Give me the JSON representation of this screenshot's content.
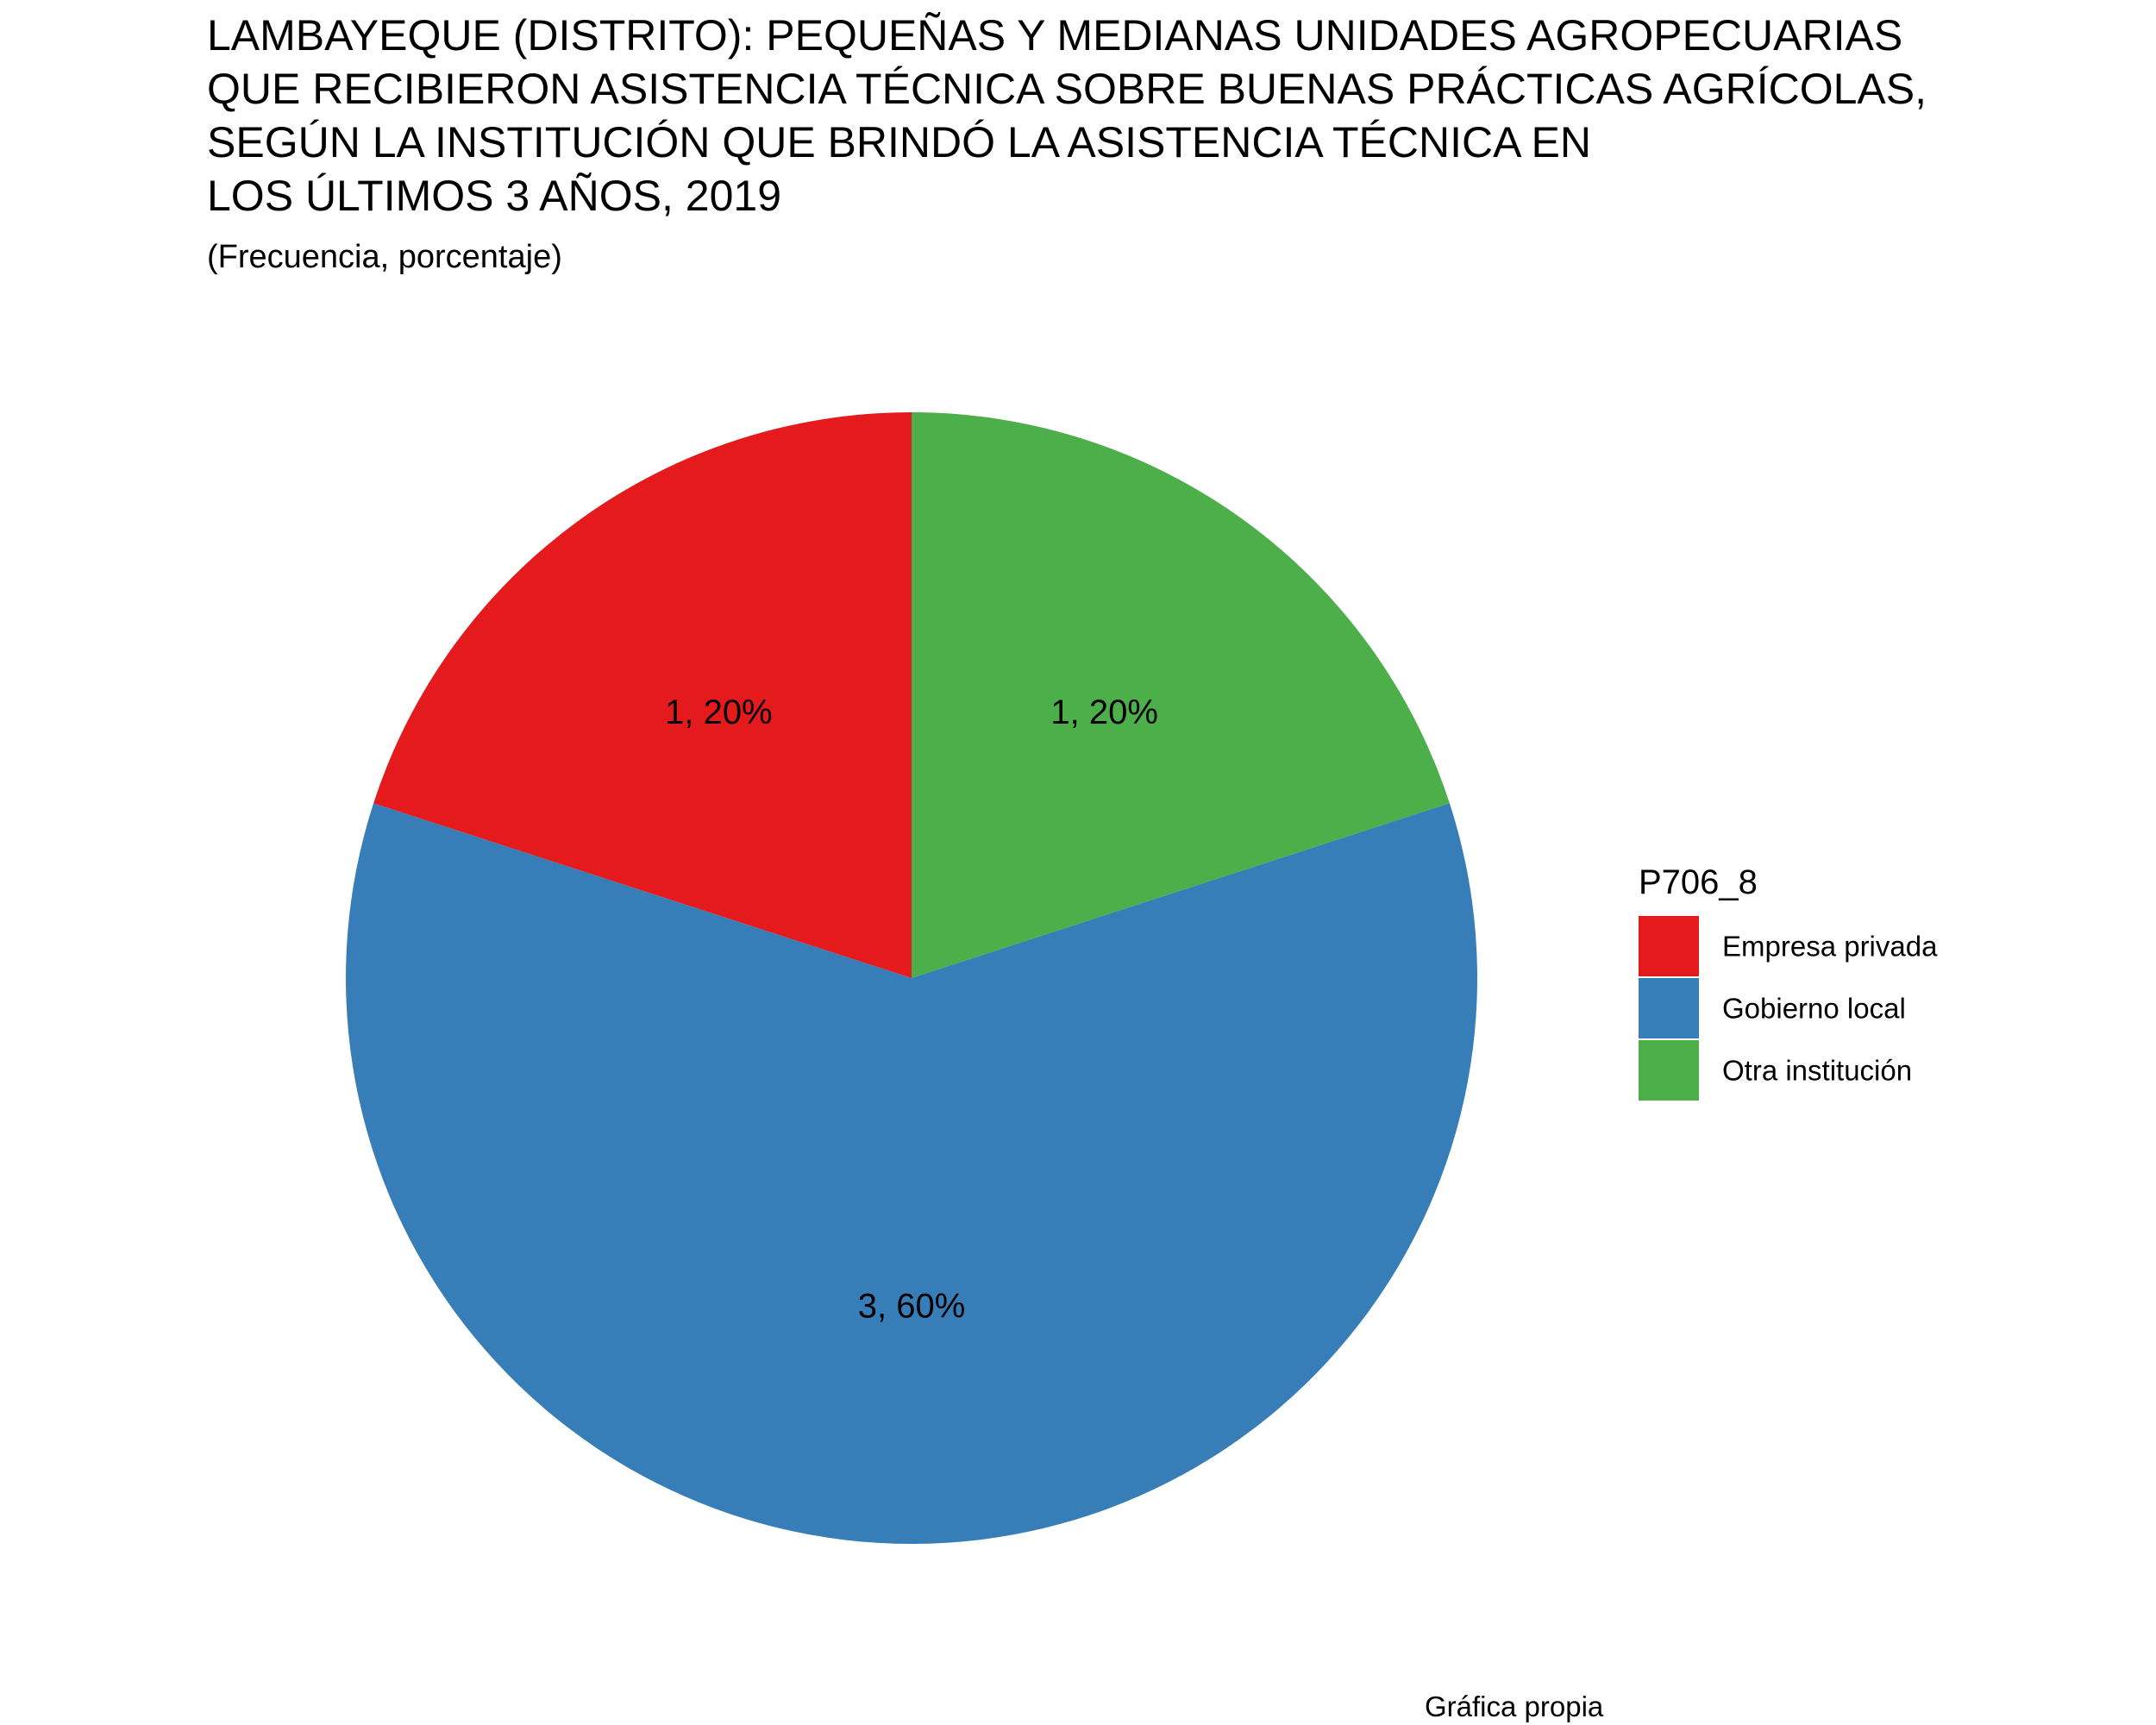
{
  "chart_data": {
    "type": "pie",
    "title_lines": [
      "LAMBAYEQUE (DISTRITO): PEQUEÑAS Y MEDIANAS UNIDADES AGROPECUARIAS",
      "QUE RECIBIERON ASISTENCIA TÉCNICA SOBRE BUENAS PRÁCTICAS AGRÍCOLAS,",
      "SEGÚN LA INSTITUCIÓN QUE BRINDÓ LA ASISTENCIA TÉCNICA EN",
      "LOS ÚLTIMOS 3 AÑOS, 2019"
    ],
    "subtitle": "(Frecuencia, porcentaje)",
    "legend_title": "P706_8",
    "legend_position": "right",
    "slices": [
      {
        "category": "Empresa privada",
        "value": 1,
        "percent": 20,
        "label": "1, 20%",
        "color": "#E41A1C"
      },
      {
        "category": "Gobierno local",
        "value": 3,
        "percent": 60,
        "label": "3, 60%",
        "color": "#377EB8"
      },
      {
        "category": "Otra institución",
        "value": 1,
        "percent": 20,
        "label": "1, 20%",
        "color": "#4DAF4A"
      }
    ],
    "caption": "Gráfica propia"
  }
}
